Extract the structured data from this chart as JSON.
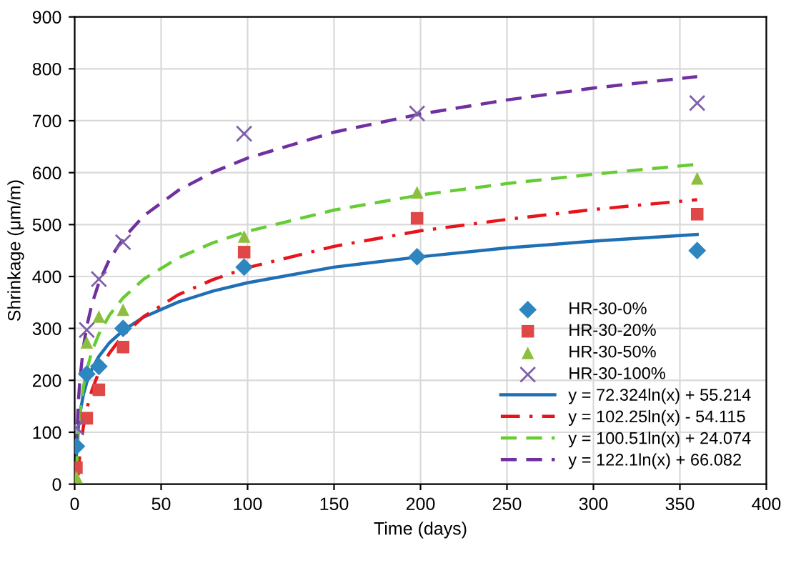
{
  "chart_data": {
    "type": "scatter",
    "xlabel": "Time (days)",
    "ylabel": "Shrinkage (μm/m)",
    "xlim": [
      0,
      400
    ],
    "xticks": [
      0,
      50,
      100,
      150,
      200,
      250,
      300,
      350,
      400
    ],
    "ylim": [
      0,
      900
    ],
    "yticks": [
      0,
      100,
      200,
      300,
      400,
      500,
      600,
      700,
      800,
      900
    ],
    "grid": true,
    "legend": "bottom right",
    "series": [
      {
        "name": "HR-30-0%",
        "marker": "diamond",
        "color": "#2e86c1",
        "x": [
          1,
          7,
          14,
          28,
          98,
          198,
          360
        ],
        "values": [
          73,
          212,
          227,
          300,
          418,
          438,
          450
        ]
      },
      {
        "name": "HR-30-20%",
        "marker": "square",
        "color": "#e04848",
        "x": [
          1,
          7,
          14,
          28,
          98,
          198,
          360
        ],
        "values": [
          32,
          127,
          182,
          264,
          447,
          512,
          520
        ]
      },
      {
        "name": "HR-30-50%",
        "marker": "triangle",
        "color": "#8cbf3f",
        "x": [
          1,
          7,
          14,
          28,
          98,
          198,
          360
        ],
        "values": [
          14,
          273,
          323,
          336,
          477,
          562,
          589
        ]
      },
      {
        "name": "HR-30-100%",
        "marker": "cross",
        "color": "#7f60a8",
        "x": [
          1,
          7,
          14,
          28,
          98,
          198,
          360
        ],
        "values": [
          109,
          297,
          395,
          466,
          675,
          714,
          734
        ]
      },
      {
        "name": "y = 72.324ln(x) + 55.214",
        "type": "line",
        "line_style": "solid",
        "color": "#1f6fb5",
        "x": [
          1,
          2,
          3,
          5,
          7,
          10,
          14,
          20,
          28,
          40,
          60,
          80,
          100,
          150,
          200,
          250,
          300,
          360
        ],
        "values": [
          55,
          105,
          135,
          172,
          196,
          222,
          246,
          272,
          296,
          322,
          351,
          372,
          388,
          418,
          438,
          455,
          468,
          481
        ]
      },
      {
        "name": "y = 102.25ln(x) - 54.115",
        "type": "line",
        "line_style": "dashdot",
        "color": "#e8141b",
        "x": [
          2,
          3,
          5,
          7,
          10,
          14,
          20,
          28,
          40,
          60,
          80,
          100,
          150,
          200,
          250,
          300,
          360
        ],
        "values": [
          17,
          58,
          110,
          145,
          181,
          216,
          252,
          287,
          323,
          365,
          394,
          417,
          458,
          488,
          510,
          529,
          548
        ]
      },
      {
        "name": "y = 100.51ln(x) + 24.074",
        "type": "line",
        "line_style": "dashed",
        "color": "#66cc33",
        "x": [
          1,
          2,
          3,
          5,
          7,
          10,
          14,
          20,
          28,
          40,
          60,
          80,
          100,
          150,
          200,
          250,
          300,
          360
        ],
        "values": [
          24,
          94,
          134,
          186,
          220,
          256,
          289,
          325,
          359,
          395,
          436,
          465,
          487,
          528,
          557,
          579,
          597,
          616
        ]
      },
      {
        "name": "y = 122.1ln(x) + 66.082",
        "type": "line",
        "line_style": "dashed",
        "color": "#7030a0",
        "x": [
          1,
          2,
          3,
          5,
          7,
          10,
          14,
          20,
          28,
          40,
          60,
          80,
          100,
          150,
          200,
          250,
          300,
          360
        ],
        "values": [
          66,
          151,
          200,
          263,
          304,
          347,
          388,
          432,
          473,
          517,
          566,
          601,
          628,
          678,
          713,
          740,
          763,
          785
        ]
      }
    ]
  }
}
